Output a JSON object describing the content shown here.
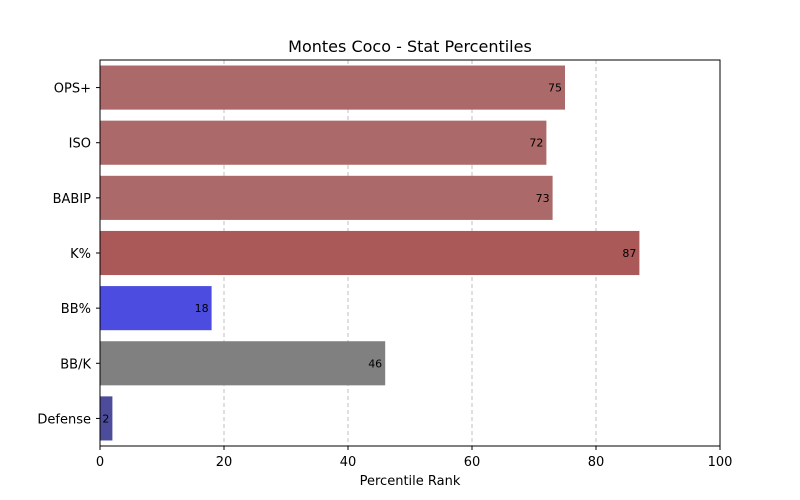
{
  "chart_data": {
    "type": "bar",
    "orientation": "horizontal",
    "title": "Montes Coco - Stat Percentiles",
    "xlabel": "Percentile Rank",
    "ylabel": "",
    "xlim": [
      0,
      100
    ],
    "x_ticks": [
      0,
      20,
      40,
      60,
      80,
      100
    ],
    "grid": "x-dashed",
    "categories": [
      "OPS+",
      "ISO",
      "BABIP",
      "K%",
      "BB%",
      "BB/K",
      "Defense"
    ],
    "values": [
      75,
      72,
      73,
      87,
      18,
      46,
      2
    ],
    "data_labels": [
      "75",
      "72",
      "73",
      "87",
      "18",
      "46",
      "2"
    ],
    "colors": [
      "#ab6a69",
      "#ab6a69",
      "#ab6a69",
      "#ab5859",
      "#4c4ce0",
      "#808080",
      "#4c4c9b"
    ]
  }
}
